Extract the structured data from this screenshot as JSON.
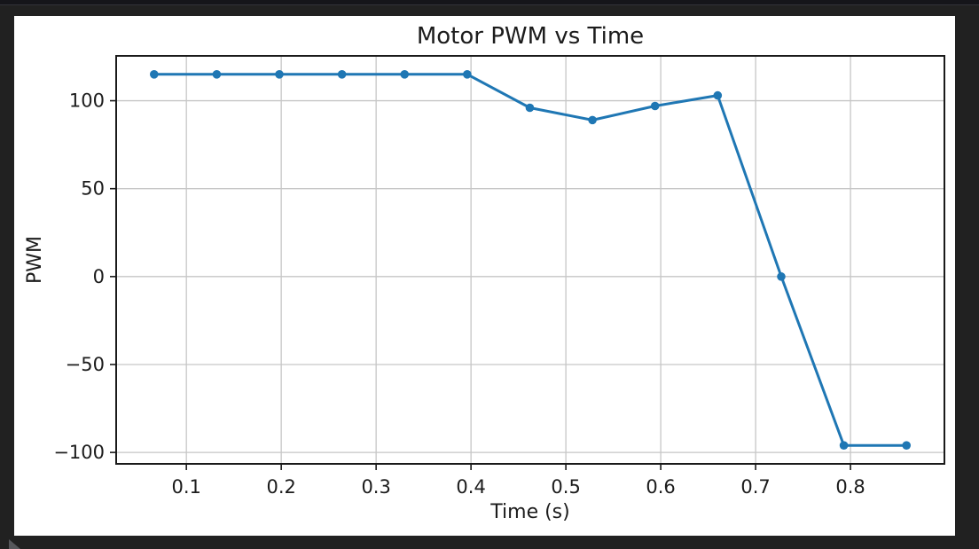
{
  "window": {
    "background_color": "#212121",
    "top_strip_color": "#15151a",
    "figure_background": "#ffffff"
  },
  "chart_data": {
    "type": "line",
    "title": "Motor PWM vs Time",
    "xlabel": "Time (s)",
    "ylabel": "PWM",
    "x": [
      0.066,
      0.132,
      0.198,
      0.264,
      0.33,
      0.396,
      0.462,
      0.528,
      0.594,
      0.66,
      0.727,
      0.793,
      0.859
    ],
    "series": [
      {
        "name": "PWM",
        "color": "#1f77b4",
        "values": [
          115,
          115,
          115,
          115,
          115,
          115,
          96,
          89,
          97,
          103,
          0,
          -96,
          -96
        ]
      }
    ],
    "xlim": [
      0.026,
      0.899
    ],
    "ylim": [
      -106.5,
      125.5
    ],
    "xticks": {
      "values": [
        0.1,
        0.2,
        0.3,
        0.4,
        0.5,
        0.6,
        0.7,
        0.8
      ],
      "labels": [
        "0.1",
        "0.2",
        "0.3",
        "0.4",
        "0.5",
        "0.6",
        "0.7",
        "0.8"
      ]
    },
    "yticks": {
      "values": [
        -100,
        -50,
        0,
        50,
        100
      ],
      "labels": [
        "−100",
        "−50",
        "0",
        "50",
        "100"
      ]
    },
    "grid": true,
    "grid_color": "#c6c6c6",
    "spine_color": "#1a1a1a",
    "text_color": "#1c1c1c",
    "legend": "none",
    "marker": "circle"
  },
  "cursor": {
    "shape": "wedge",
    "color": "#56575b"
  }
}
